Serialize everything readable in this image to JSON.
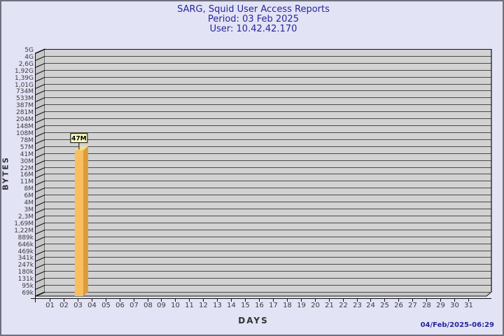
{
  "header": {
    "title": "SARG, Squid User Access Reports",
    "period": "Period: 03 Feb 2025",
    "user": "User: 10.42.42.170"
  },
  "footer": {
    "timestamp": "04/Feb/2025-06:29"
  },
  "colors": {
    "background": "#E3E3F6",
    "frame_border": "#70707C",
    "title_text": "#26269B",
    "wall_back": "#D2D2D2",
    "wall_side": "#C7C7C7",
    "grid_line": "#4A4A4A",
    "edge_line": "#111111",
    "axis_text": "#3A3A3A",
    "bar_front": "#F9BF5F",
    "bar_side": "#DC9C3A",
    "bar_top": "#EFE094",
    "annotation_bg": "#FFFFC4",
    "annotation_text": "#000000"
  },
  "chart_data": {
    "type": "bar",
    "title": "SARG, Squid User Access Reports",
    "subtitle1": "Period: 03 Feb 2025",
    "subtitle2": "User: 10.42.42.170",
    "xlabel": "DAYS",
    "ylabel": "BYTES",
    "y_scale": "log",
    "grid": true,
    "y_top_value": 5000000000,
    "y_bottom_value": 69000,
    "y_tick_labels": [
      "5G",
      "4G",
      "2,6G",
      "1,92G",
      "1,39G",
      "1,01G",
      "734M",
      "533M",
      "387M",
      "281M",
      "204M",
      "148M",
      "108M",
      "78M",
      "57M",
      "41M",
      "30M",
      "22M",
      "16M",
      "11M",
      "8M",
      "6M",
      "4M",
      "3M",
      "2,3M",
      "1,69M",
      "1,22M",
      "889k",
      "646k",
      "469k",
      "341k",
      "247k",
      "180k",
      "131k",
      "95k",
      "69k"
    ],
    "categories": [
      "01",
      "02",
      "03",
      "04",
      "05",
      "06",
      "07",
      "08",
      "09",
      "10",
      "11",
      "12",
      "13",
      "14",
      "15",
      "16",
      "17",
      "18",
      "19",
      "20",
      "21",
      "22",
      "23",
      "24",
      "25",
      "26",
      "27",
      "28",
      "29",
      "30",
      "31"
    ],
    "bars": [
      {
        "day": "03",
        "value": 47000000,
        "label": "47M"
      }
    ]
  }
}
